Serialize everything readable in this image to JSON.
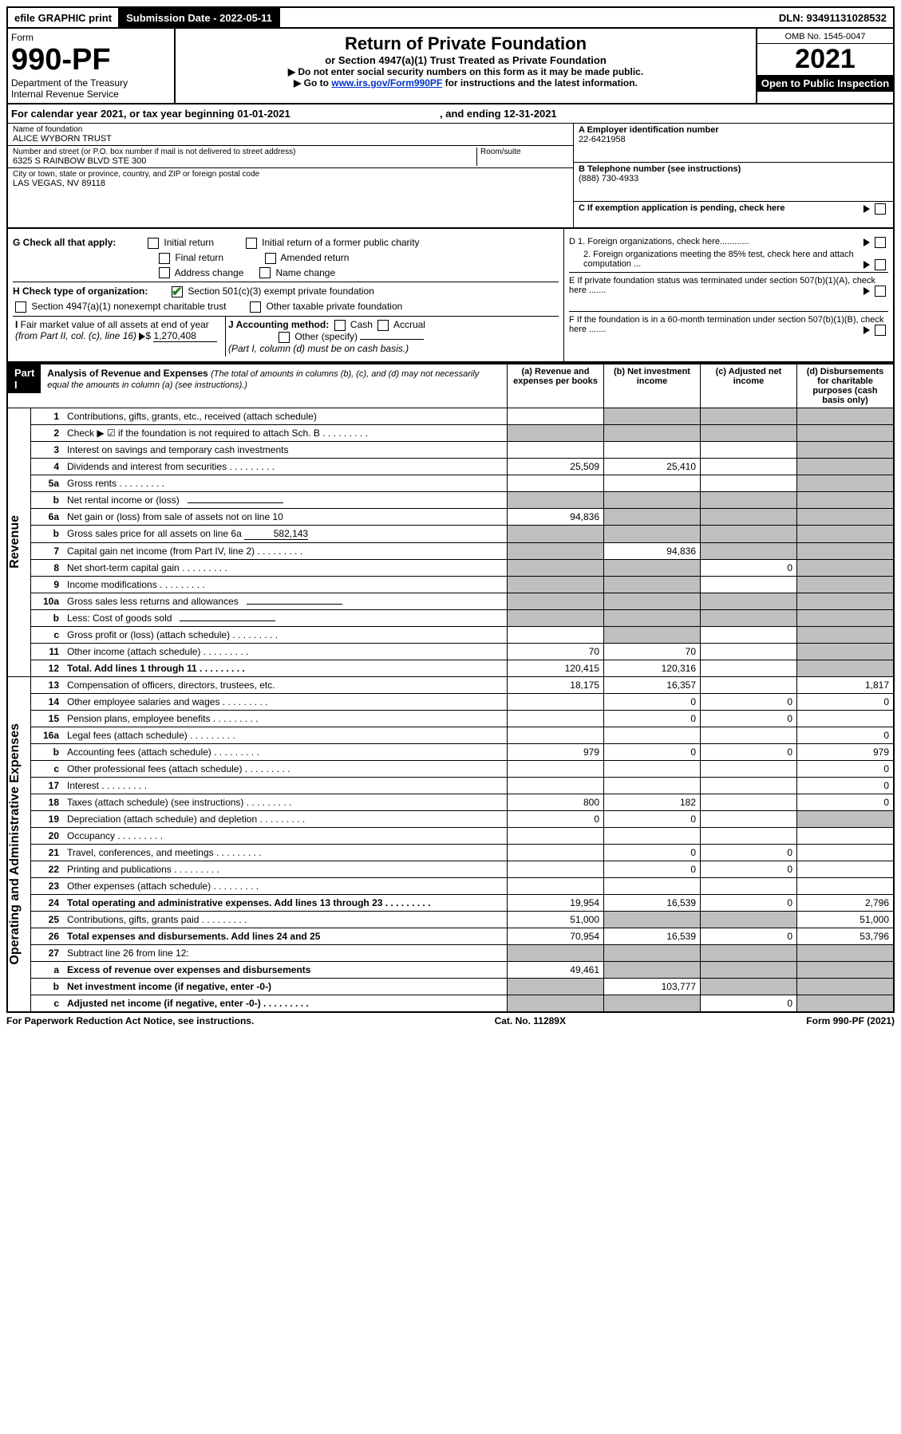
{
  "top_bar": {
    "efile": "efile GRAPHIC print",
    "submission_label": "Submission Date - 2022-05-11",
    "dln": "DLN: 93491131028532"
  },
  "header": {
    "form_label": "Form",
    "form_number": "990-PF",
    "dept": "Department of the Treasury",
    "irs": "Internal Revenue Service",
    "title": "Return of Private Foundation",
    "subtitle": "or Section 4947(a)(1) Trust Treated as Private Foundation",
    "instr1": "▶ Do not enter social security numbers on this form as it may be made public.",
    "instr2_pre": "▶ Go to ",
    "instr2_link": "www.irs.gov/Form990PF",
    "instr2_post": " for instructions and the latest information.",
    "omb": "OMB No. 1545-0047",
    "year": "2021",
    "open": "Open to Public Inspection"
  },
  "cal_year": {
    "pre": "For calendar year 2021, or tax year beginning ",
    "begin": "01-01-2021",
    "mid": " , and ending ",
    "end": "12-31-2021"
  },
  "name_box": {
    "label": "Name of foundation",
    "value": "ALICE WYBORN TRUST"
  },
  "addr_box": {
    "label": "Number and street (or P.O. box number if mail is not delivered to street address)",
    "value": "6325 S RAINBOW BLVD STE 300",
    "room_label": "Room/suite"
  },
  "city_box": {
    "label": "City or town, state or province, country, and ZIP or foreign postal code",
    "value": "LAS VEGAS, NV  89118"
  },
  "ein_box": {
    "label": "A Employer identification number",
    "value": "22-6421958"
  },
  "phone_box": {
    "label": "B Telephone number (see instructions)",
    "value": "(888) 730-4933"
  },
  "c_box": {
    "text": "C If exemption application is pending, check here"
  },
  "g_checks": {
    "label": "G Check all that apply:",
    "items": [
      "Initial return",
      "Final return",
      "Address change",
      "Initial return of a former public charity",
      "Amended return",
      "Name change"
    ]
  },
  "h_checks": {
    "label": "H Check type of organization:",
    "c1": "Section 501(c)(3) exempt private foundation",
    "c2": "Section 4947(a)(1) nonexempt charitable trust",
    "c3": "Other taxable private foundation"
  },
  "i_box": {
    "label": "I Fair market value of all assets at end of year (from Part II, col. (c), line 16) ▶$ ",
    "value": "1,270,408"
  },
  "j_box": {
    "label": "J Accounting method:",
    "cash": "Cash",
    "accrual": "Accrual",
    "other": "Other (specify)",
    "note": "(Part I, column (d) must be on cash basis.)"
  },
  "d_box": {
    "d1": "D 1. Foreign organizations, check here............",
    "d2": "2. Foreign organizations meeting the 85% test, check here and attach computation ..."
  },
  "e_box": {
    "text": "E  If private foundation status was terminated under section 507(b)(1)(A), check here ......."
  },
  "f_box": {
    "text": "F  If the foundation is in a 60-month termination under section 507(b)(1)(B), check here ......."
  },
  "part1": {
    "label": "Part I",
    "title": "Analysis of Revenue and Expenses",
    "note": "(The total of amounts in columns (b), (c), and (d) may not necessarily equal the amounts in column (a) (see instructions).)",
    "col_a": "(a)   Revenue and expenses per books",
    "col_b": "(b)   Net investment income",
    "col_c": "(c)   Adjusted net income",
    "col_d": "(d)   Disbursements for charitable purposes (cash basis only)"
  },
  "side_labels": {
    "revenue": "Revenue",
    "expenses": "Operating and Administrative Expenses"
  },
  "rows": [
    {
      "n": "1",
      "d": "Contributions, gifts, grants, etc., received (attach schedule)",
      "a": "",
      "b": "",
      "c": "",
      "dd": "",
      "gb": 1,
      "gc": 1,
      "gd": 1
    },
    {
      "n": "2",
      "d": "Check ▶ ☑ if the foundation is not required to attach Sch. B",
      "a": "",
      "b": "",
      "c": "",
      "dd": "",
      "ga": 1,
      "gb": 1,
      "gc": 1,
      "gd": 1,
      "dots": 1
    },
    {
      "n": "3",
      "d": "Interest on savings and temporary cash investments",
      "a": "",
      "b": "",
      "c": "",
      "dd": "",
      "gd": 1
    },
    {
      "n": "4",
      "d": "Dividends and interest from securities",
      "a": "25,509",
      "b": "25,410",
      "c": "",
      "dd": "",
      "gd": 1,
      "dots": 1
    },
    {
      "n": "5a",
      "d": "Gross rents",
      "a": "",
      "b": "",
      "c": "",
      "dd": "",
      "gd": 1,
      "dots": 1
    },
    {
      "n": "b",
      "d": "Net rental income or (loss)",
      "a": "",
      "b": "",
      "c": "",
      "dd": "",
      "ga": 1,
      "gb": 1,
      "gc": 1,
      "gd": 1,
      "ul": 1
    },
    {
      "n": "6a",
      "d": "Net gain or (loss) from sale of assets not on line 10",
      "a": "94,836",
      "b": "",
      "c": "",
      "dd": "",
      "gb": 1,
      "gc": 1,
      "gd": 1
    },
    {
      "n": "b",
      "d": "Gross sales price for all assets on line 6a",
      "a": "",
      "b": "",
      "c": "",
      "dd": "",
      "ga": 1,
      "gb": 1,
      "gc": 1,
      "gd": 1,
      "inline": "582,143"
    },
    {
      "n": "7",
      "d": "Capital gain net income (from Part IV, line 2)",
      "a": "",
      "b": "94,836",
      "c": "",
      "dd": "",
      "ga": 1,
      "gc": 1,
      "gd": 1,
      "dots": 1
    },
    {
      "n": "8",
      "d": "Net short-term capital gain",
      "a": "",
      "b": "",
      "c": "0",
      "dd": "",
      "ga": 1,
      "gb": 1,
      "gd": 1,
      "dots": 1
    },
    {
      "n": "9",
      "d": "Income modifications",
      "a": "",
      "b": "",
      "c": "",
      "dd": "",
      "ga": 1,
      "gb": 1,
      "gd": 1,
      "dots": 1
    },
    {
      "n": "10a",
      "d": "Gross sales less returns and allowances",
      "a": "",
      "b": "",
      "c": "",
      "dd": "",
      "ga": 1,
      "gb": 1,
      "gc": 1,
      "gd": 1,
      "ul": 1
    },
    {
      "n": "b",
      "d": "Less: Cost of goods sold",
      "a": "",
      "b": "",
      "c": "",
      "dd": "",
      "ga": 1,
      "gb": 1,
      "gc": 1,
      "gd": 1,
      "dots": 1,
      "ul": 1
    },
    {
      "n": "c",
      "d": "Gross profit or (loss) (attach schedule)",
      "a": "",
      "b": "",
      "c": "",
      "dd": "",
      "gb": 1,
      "gd": 1,
      "dots": 1
    },
    {
      "n": "11",
      "d": "Other income (attach schedule)",
      "a": "70",
      "b": "70",
      "c": "",
      "dd": "",
      "gd": 1,
      "dots": 1
    },
    {
      "n": "12",
      "d": "Total. Add lines 1 through 11",
      "a": "120,415",
      "b": "120,316",
      "c": "",
      "dd": "",
      "gd": 1,
      "bold": 1,
      "dots": 1
    },
    {
      "n": "13",
      "d": "Compensation of officers, directors, trustees, etc.",
      "a": "18,175",
      "b": "16,357",
      "c": "",
      "dd": "1,817"
    },
    {
      "n": "14",
      "d": "Other employee salaries and wages",
      "a": "",
      "b": "0",
      "c": "0",
      "dd": "0",
      "dots": 1
    },
    {
      "n": "15",
      "d": "Pension plans, employee benefits",
      "a": "",
      "b": "0",
      "c": "0",
      "dd": "",
      "dots": 1
    },
    {
      "n": "16a",
      "d": "Legal fees (attach schedule)",
      "a": "",
      "b": "",
      "c": "",
      "dd": "0",
      "dots": 1
    },
    {
      "n": "b",
      "d": "Accounting fees (attach schedule)",
      "a": "979",
      "b": "0",
      "c": "0",
      "dd": "979",
      "dots": 1
    },
    {
      "n": "c",
      "d": "Other professional fees (attach schedule)",
      "a": "",
      "b": "",
      "c": "",
      "dd": "0",
      "dots": 1
    },
    {
      "n": "17",
      "d": "Interest",
      "a": "",
      "b": "",
      "c": "",
      "dd": "0",
      "dots": 1
    },
    {
      "n": "18",
      "d": "Taxes (attach schedule) (see instructions)",
      "a": "800",
      "b": "182",
      "c": "",
      "dd": "0",
      "dots": 1
    },
    {
      "n": "19",
      "d": "Depreciation (attach schedule) and depletion",
      "a": "0",
      "b": "0",
      "c": "",
      "dd": "",
      "gd": 1,
      "dots": 1
    },
    {
      "n": "20",
      "d": "Occupancy",
      "a": "",
      "b": "",
      "c": "",
      "dd": "",
      "dots": 1
    },
    {
      "n": "21",
      "d": "Travel, conferences, and meetings",
      "a": "",
      "b": "0",
      "c": "0",
      "dd": "",
      "dots": 1
    },
    {
      "n": "22",
      "d": "Printing and publications",
      "a": "",
      "b": "0",
      "c": "0",
      "dd": "",
      "dots": 1
    },
    {
      "n": "23",
      "d": "Other expenses (attach schedule)",
      "a": "",
      "b": "",
      "c": "",
      "dd": "",
      "dots": 1
    },
    {
      "n": "24",
      "d": "Total operating and administrative expenses. Add lines 13 through 23",
      "a": "19,954",
      "b": "16,539",
      "c": "0",
      "dd": "2,796",
      "bold": 1,
      "dots": 1
    },
    {
      "n": "25",
      "d": "Contributions, gifts, grants paid",
      "a": "51,000",
      "b": "",
      "c": "",
      "dd": "51,000",
      "gb": 1,
      "gc": 1,
      "dots": 1
    },
    {
      "n": "26",
      "d": "Total expenses and disbursements. Add lines 24 and 25",
      "a": "70,954",
      "b": "16,539",
      "c": "0",
      "dd": "53,796",
      "bold": 1
    },
    {
      "n": "27",
      "d": "Subtract line 26 from line 12:",
      "a": "",
      "b": "",
      "c": "",
      "dd": "",
      "ga": 1,
      "gb": 1,
      "gc": 1,
      "gd": 1
    },
    {
      "n": "a",
      "d": "Excess of revenue over expenses and disbursements",
      "a": "49,461",
      "b": "",
      "c": "",
      "dd": "",
      "gb": 1,
      "gc": 1,
      "gd": 1,
      "bold": 1
    },
    {
      "n": "b",
      "d": "Net investment income (if negative, enter -0-)",
      "a": "",
      "b": "103,777",
      "c": "",
      "dd": "",
      "ga": 1,
      "gc": 1,
      "gd": 1,
      "bold": 1
    },
    {
      "n": "c",
      "d": "Adjusted net income (if negative, enter -0-)",
      "a": "",
      "b": "",
      "c": "0",
      "dd": "",
      "ga": 1,
      "gb": 1,
      "gd": 1,
      "bold": 1,
      "dots": 1
    }
  ],
  "footer": {
    "left": "For Paperwork Reduction Act Notice, see instructions.",
    "mid": "Cat. No. 11289X",
    "right": "Form 990-PF (2021)"
  },
  "colors": {
    "grey": "#bfbfbf",
    "link": "#0033cc",
    "check_green": "#1a7f1a"
  }
}
